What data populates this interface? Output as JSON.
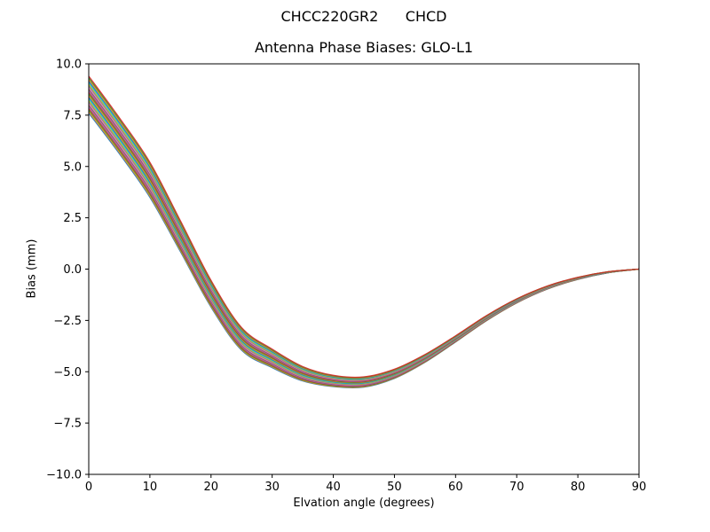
{
  "chart_data": {
    "type": "line",
    "title": "CHCC220GR2      CHCD",
    "subtitle": "Antenna Phase Biases: GLO-L1",
    "xlabel": "Elvation angle (degrees)",
    "ylabel": "Bias (mm)",
    "xlim": [
      0,
      90
    ],
    "ylim": [
      -10,
      10
    ],
    "xticks": [
      0,
      10,
      20,
      30,
      40,
      50,
      60,
      70,
      80,
      90
    ],
    "xtick_labels": [
      "0",
      "10",
      "20",
      "30",
      "40",
      "50",
      "60",
      "70",
      "80",
      "90"
    ],
    "yticks": [
      10,
      7.5,
      5,
      2.5,
      0,
      -2.5,
      -5,
      -7.5,
      -10
    ],
    "ytick_labels": [
      "10.0",
      "7.5",
      "5.0",
      "2.5",
      "0.0",
      "−2.5",
      "−5.0",
      "−7.5",
      "−10.0"
    ],
    "grid": false,
    "legend": "none",
    "x": [
      0,
      5,
      10,
      15,
      20,
      25,
      30,
      35,
      40,
      45,
      50,
      55,
      60,
      65,
      70,
      75,
      80,
      85,
      90
    ],
    "mean_bias": [
      8.5,
      6.5,
      4.35,
      1.6,
      -1.2,
      -3.4,
      -4.35,
      -5.1,
      -5.45,
      -5.5,
      -5.1,
      -4.35,
      -3.4,
      -2.4,
      -1.55,
      -0.9,
      -0.45,
      -0.15,
      0.0
    ],
    "spread": [
      1.8,
      1.75,
      1.7,
      1.5,
      1.3,
      1.1,
      0.9,
      0.7,
      0.55,
      0.5,
      0.45,
      0.38,
      0.3,
      0.25,
      0.2,
      0.15,
      0.1,
      0.05,
      0.0
    ],
    "num_lines": 24,
    "line_colors": [
      "#1f77b4",
      "#ff7f0e",
      "#2ca02c",
      "#d62728",
      "#9467bd",
      "#8c564b",
      "#e377c2",
      "#7f7f7f",
      "#bcbd22",
      "#17becf"
    ],
    "axis_color": "#000000",
    "background_color": "#ffffff"
  }
}
